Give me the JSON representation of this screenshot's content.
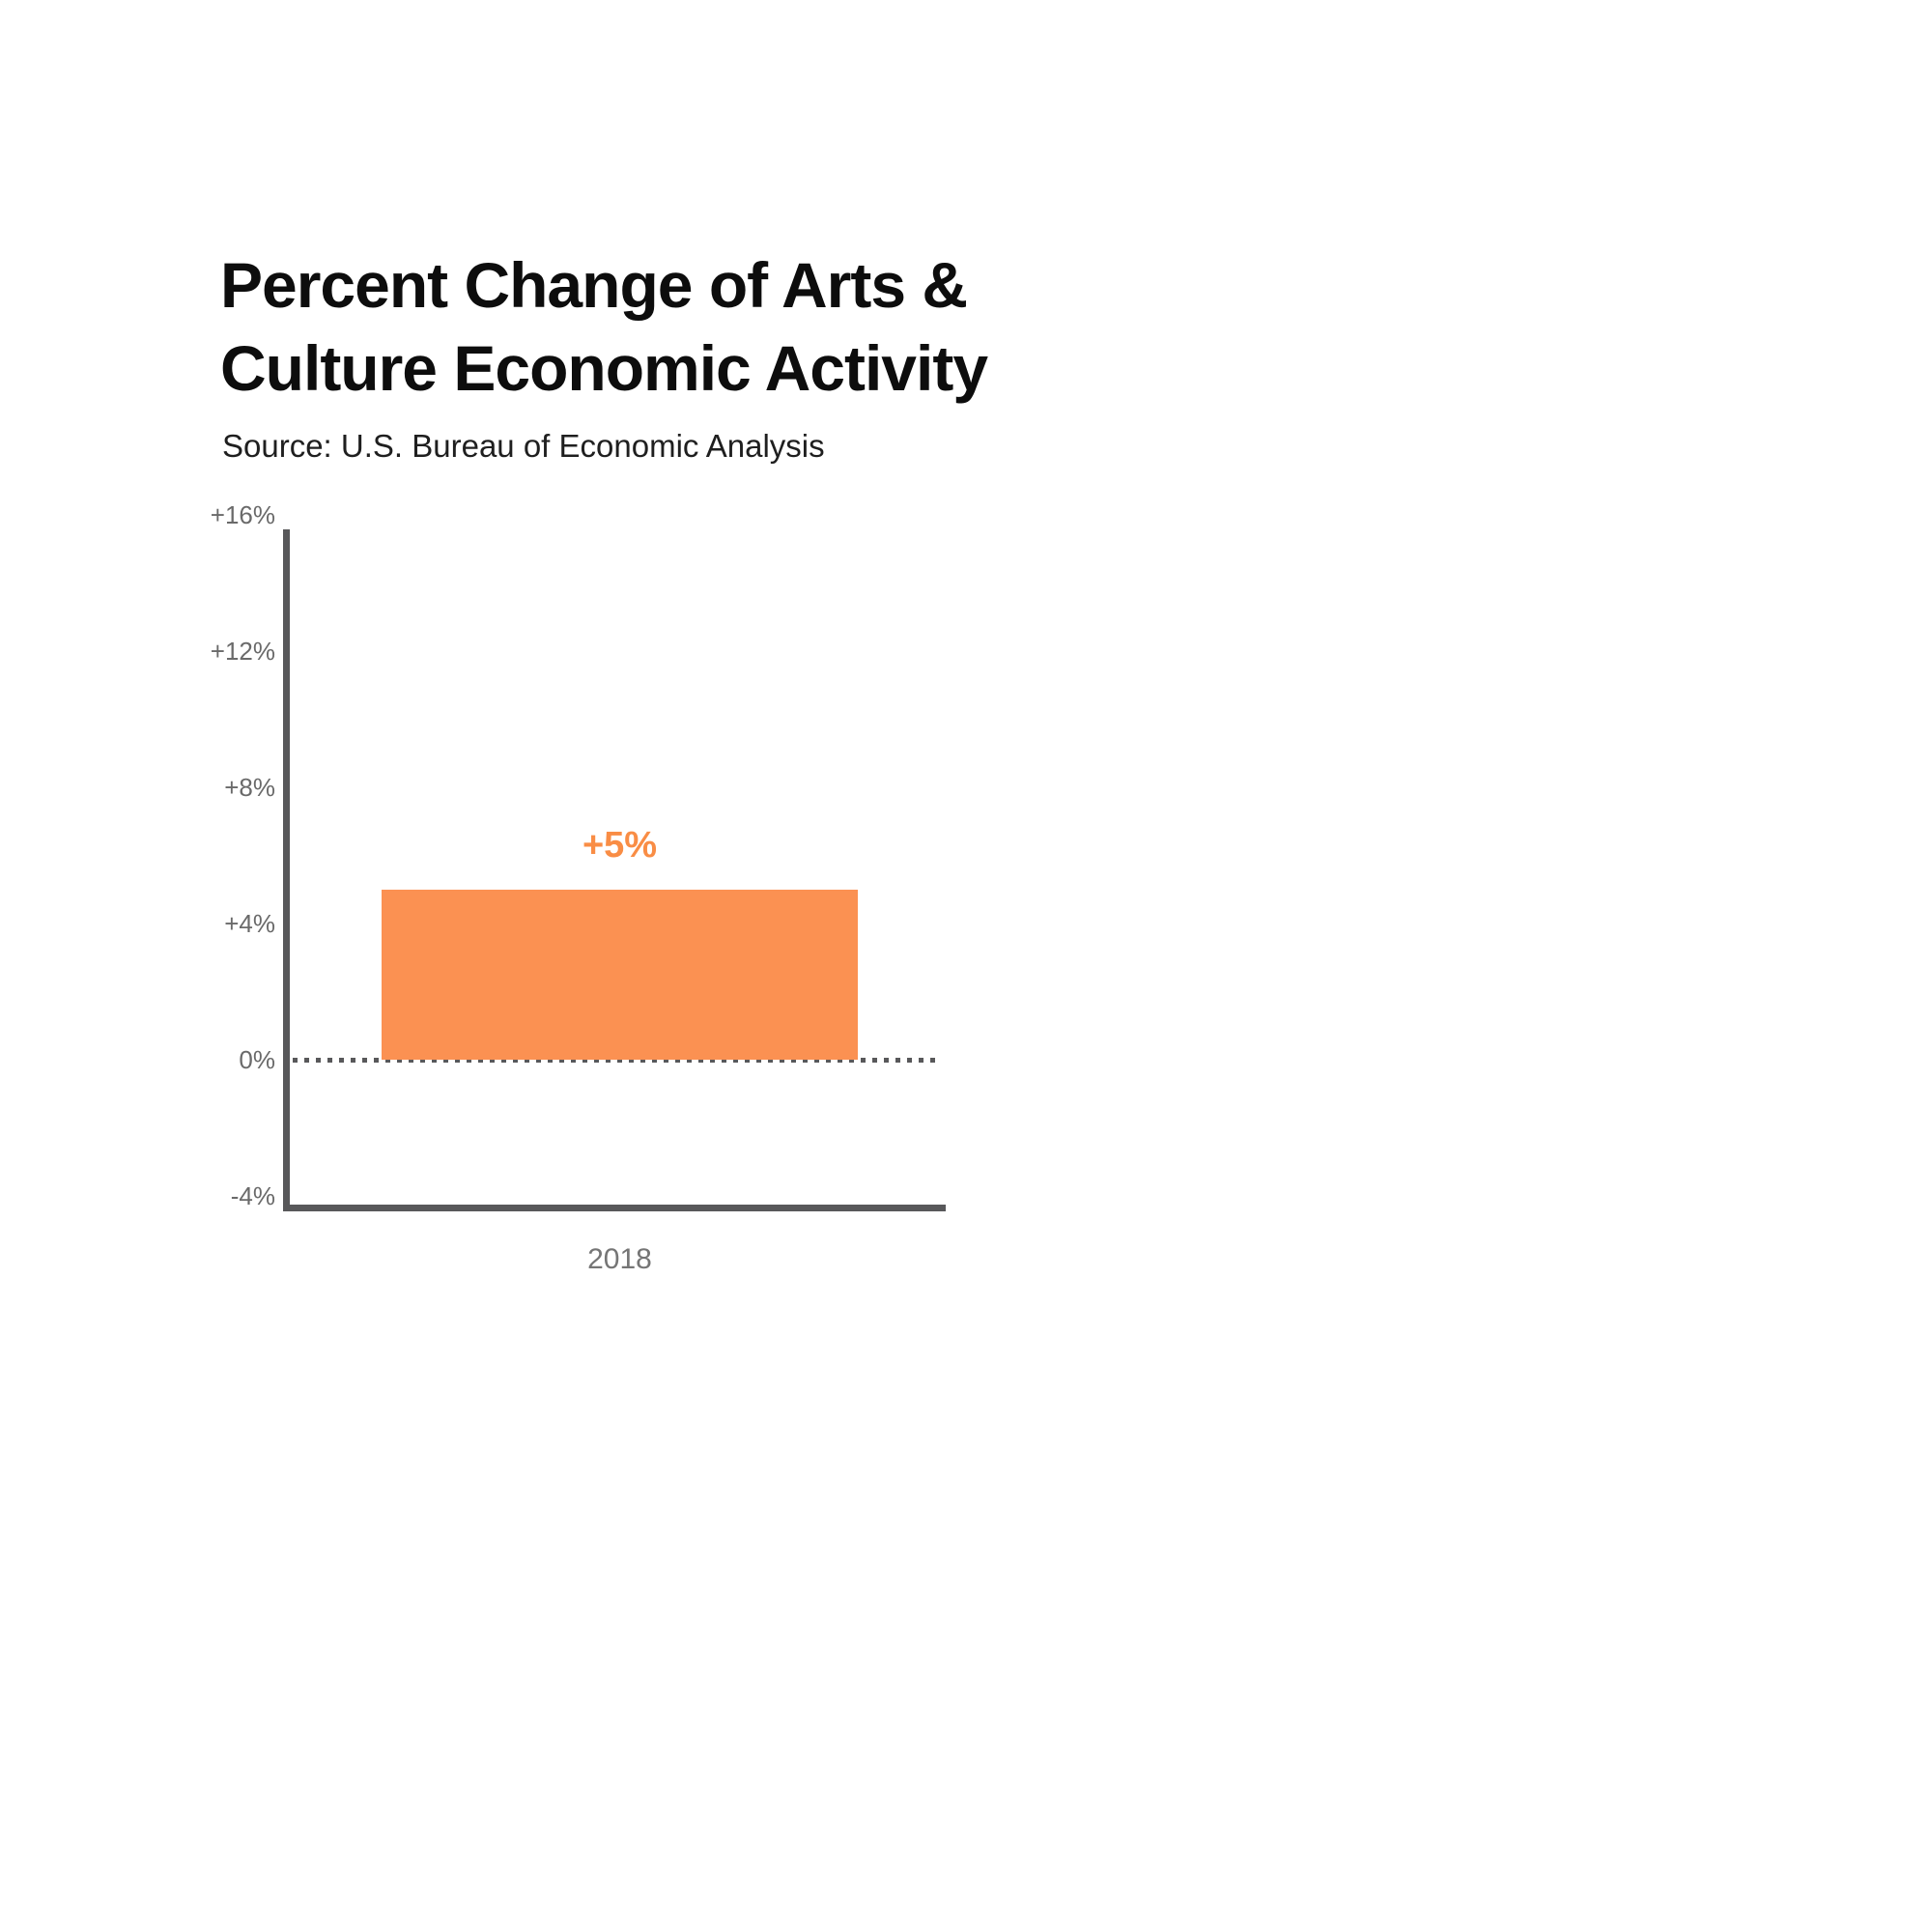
{
  "header": {
    "title": "Percent Change of Arts & Culture Economic Activity",
    "title_lines": [
      "Percent Change of Arts &",
      "Culture Economic Activity"
    ],
    "source": "Source: U.S. Bureau of Economic Analysis"
  },
  "chart_data": {
    "type": "bar",
    "title": "Percent Change of Arts & Culture Economic Activity",
    "subtitle": "Source: U.S. Bureau of Economic Analysis",
    "categories": [
      "2018"
    ],
    "values": [
      5
    ],
    "value_labels": [
      "+5%"
    ],
    "xlabel": "",
    "ylabel": "",
    "ylim": [
      -4,
      16
    ],
    "yticks": [
      {
        "value": 16,
        "label": "+16%"
      },
      {
        "value": 12,
        "label": "+12%"
      },
      {
        "value": 8,
        "label": "+8%"
      },
      {
        "value": 4,
        "label": "+4%"
      },
      {
        "value": 0,
        "label": "0%"
      },
      {
        "value": -4,
        "label": "-4%"
      }
    ],
    "grid": false,
    "legend": false,
    "zero_baseline_style": "dotted"
  },
  "colors": {
    "bar": "#FB9152",
    "value_label": "#F98D45",
    "axis": "#58585a",
    "tick_text": "#6a6a6a",
    "category_text": "#757575",
    "title_text": "#0d0d0d",
    "background": "#ffffff"
  }
}
